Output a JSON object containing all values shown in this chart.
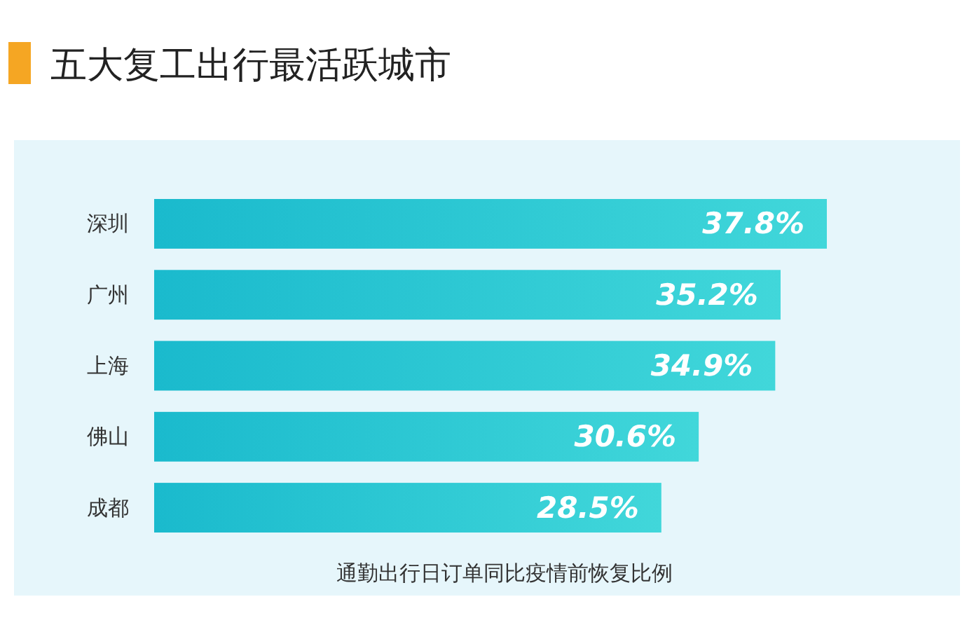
{
  "chart_data": {
    "type": "bar",
    "orientation": "horizontal",
    "title": "五大复工出行最活跃城市",
    "xlabel": "通勤出行日订单同比疫情前恢复比例",
    "categories": [
      "深圳",
      "广州",
      "上海",
      "佛山",
      "成都"
    ],
    "values": [
      37.8,
      35.2,
      34.9,
      30.6,
      28.5
    ],
    "value_labels": [
      "37.8%",
      "35.2%",
      "34.9%",
      "30.6%",
      "28.5%"
    ],
    "color": "#1fd0d4"
  }
}
